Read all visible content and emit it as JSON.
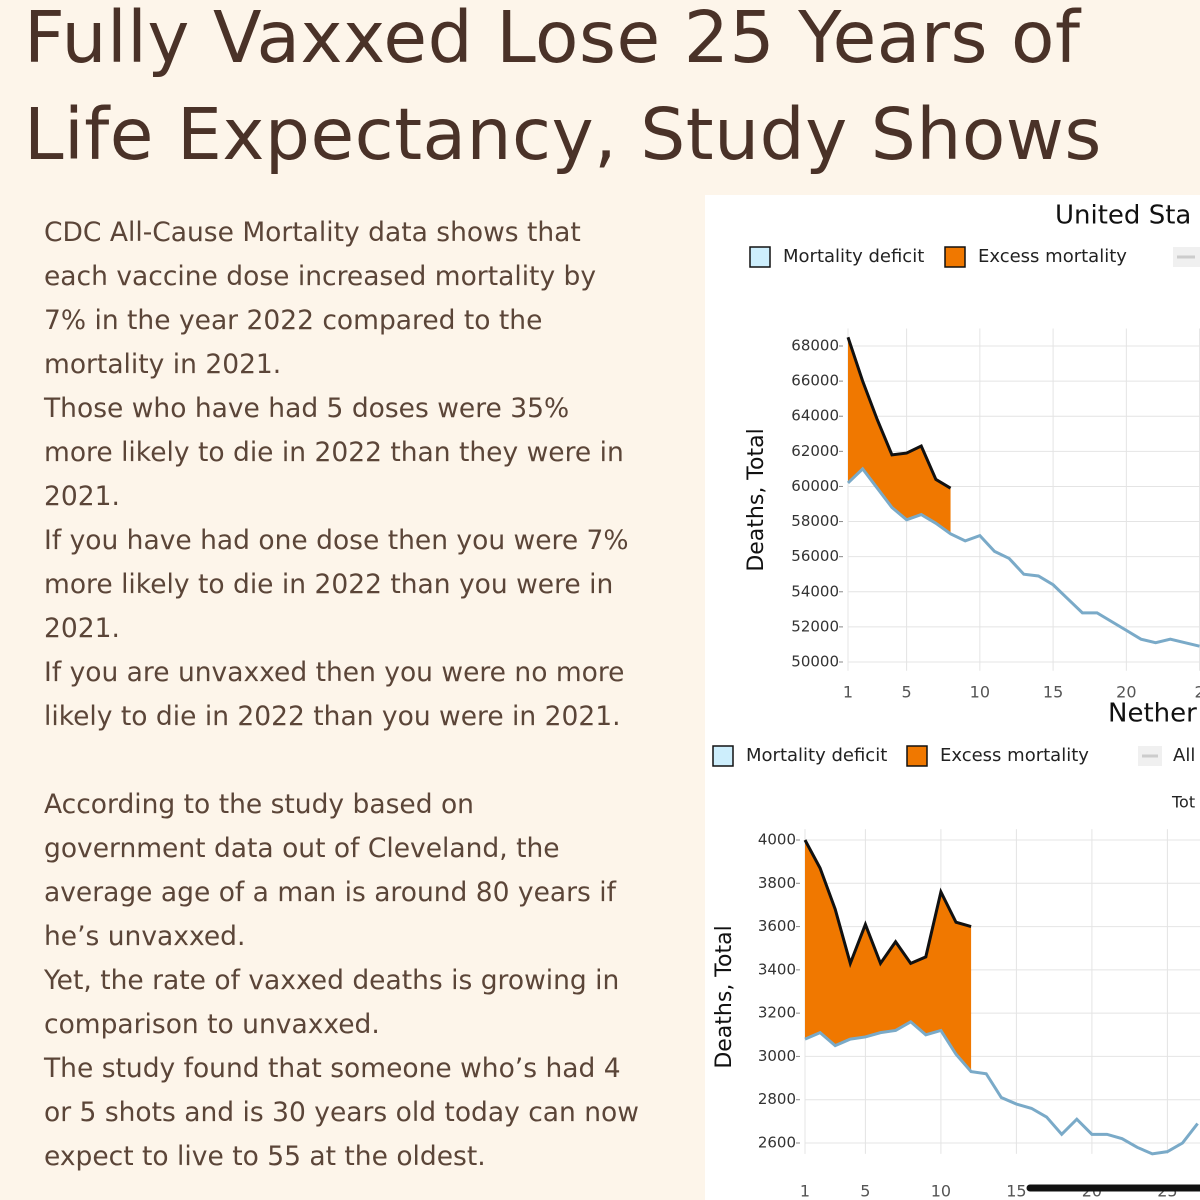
{
  "header": {
    "title": [
      "Fully Vaxxed Lose 25 Years of",
      "Life Expectancy, Study Shows"
    ]
  },
  "body": [
    "CDC All-Cause Mortality data shows that",
    "each vaccine dose increased mortality by",
    "7% in the year 2022 compared to the",
    "mortality in 2021.",
    "Those who have had 5 doses were 35%",
    "more likely to die in 2022 than they were in",
    "2021.",
    "If you have had one dose then you were 7%",
    "more likely to die in 2022 than you were in",
    "2021.",
    "If you are unvaxxed then you were no more",
    "likely to die in 2022 than you were in 2021.",
    null,
    "According to the study based on",
    "government data out of Cleveland, the",
    "average age of a man is around 80 years if",
    "he’s unvaxxed.",
    "Yet, the rate of vaxxed deaths is growing in",
    "comparison to unvaxxed.",
    "The study found that someone who’s had 4",
    "or 5 shots and is 30 years old today can now",
    "expect to live to 55 at the oldest."
  ],
  "chart_data": [
    {
      "type": "area",
      "title": "United Sta",
      "y_label": "Deaths, Total",
      "legend": [
        {
          "name": "Mortality deficit",
          "color": "#cdeefc"
        },
        {
          "name": "Excess mortality",
          "color": "#f07800"
        }
      ],
      "x": [
        1,
        2,
        3,
        4,
        5,
        6,
        7,
        8,
        9,
        10,
        11,
        12,
        13,
        14,
        15,
        16,
        17,
        18,
        19,
        20,
        21,
        22,
        23,
        24,
        25
      ],
      "observed": [
        68500,
        66000,
        63800,
        61800,
        61900,
        62300,
        60400,
        59900,
        null,
        null,
        null,
        null,
        null,
        null,
        null,
        null,
        null,
        null,
        null,
        null,
        null,
        null,
        null,
        null,
        null
      ],
      "baseline": [
        60200,
        61000,
        59900,
        58800,
        58100,
        58400,
        57900,
        57300,
        56900,
        57200,
        56300,
        55900,
        55000,
        54900,
        54400,
        53600,
        52800,
        52800,
        52300,
        51800,
        51300,
        51100,
        51300,
        51100,
        50900
      ],
      "observed_color": "#111111",
      "baseline_color": "#7aaac8",
      "fill_color": "#f07800",
      "xticks": [
        1,
        5,
        10,
        15,
        20,
        {
          "value": 25,
          "label": "2"
        }
      ],
      "yticks": [
        50000,
        52000,
        54000,
        56000,
        58000,
        60000,
        62000,
        64000,
        66000,
        68000
      ],
      "ylim": [
        49500,
        69000
      ],
      "grid": true
    },
    {
      "type": "area",
      "title": "Nether",
      "subtitle": "Tot",
      "y_label": "Deaths, Total",
      "legend": [
        {
          "name": "Mortality deficit",
          "color": "#cdeefc"
        },
        {
          "name": "Excess mortality",
          "color": "#f07800"
        },
        {
          "name": "All",
          "color": "#cccccc"
        }
      ],
      "x": [
        1,
        2,
        3,
        4,
        5,
        6,
        7,
        8,
        9,
        10,
        11,
        12,
        13,
        14,
        15,
        16,
        17,
        18,
        19,
        20,
        21,
        22,
        23,
        24,
        25,
        26,
        27
      ],
      "observed": [
        4000,
        3870,
        3680,
        3430,
        3610,
        3430,
        3530,
        3430,
        3460,
        3760,
        3620,
        3600,
        null,
        null,
        null,
        null,
        null,
        null,
        null,
        null,
        null,
        null,
        null,
        null,
        null,
        null,
        null
      ],
      "baseline": [
        3080,
        3110,
        3050,
        3080,
        3090,
        3110,
        3120,
        3160,
        3100,
        3120,
        3010,
        2930,
        2920,
        2810,
        2780,
        2760,
        2720,
        2640,
        2710,
        2640,
        2640,
        2620,
        2580,
        2550,
        2560,
        2600,
        2690
      ],
      "observed_color": "#111111",
      "baseline_color": "#7aaac8",
      "fill_color": "#f07800",
      "xticks": [
        1,
        5,
        10,
        15,
        20,
        25
      ],
      "yticks": [
        2600,
        2800,
        3000,
        3200,
        3400,
        3600,
        3800,
        4000
      ],
      "ylim": [
        2550,
        4050
      ],
      "grid": true
    }
  ]
}
